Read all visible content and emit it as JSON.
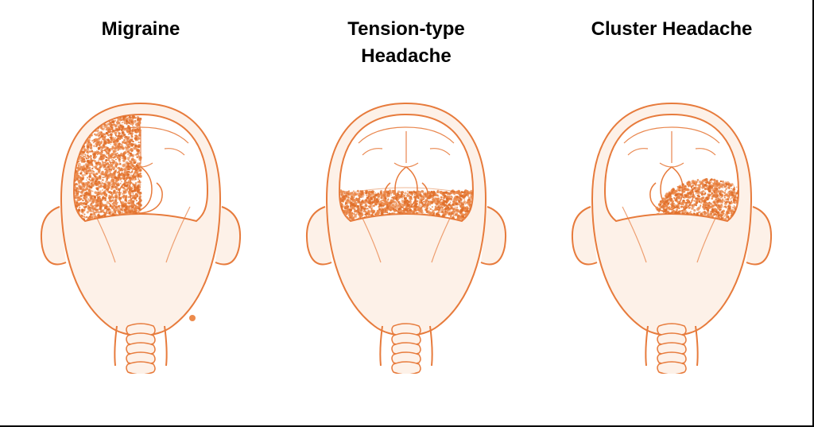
{
  "type": "infographic",
  "background_color": "#ffffff",
  "border_color": "#000000",
  "title_fontsize": 24,
  "title_fontweight": 700,
  "title_color": "#000000",
  "stroke_color": "#e77b3c",
  "fill_light": "#fdf1e8",
  "pain_color": "#ec8a4b",
  "pain_color_dense": "#e06f2a",
  "stroke_width": 2,
  "panels": [
    {
      "id": "migraine",
      "title": "Migraine",
      "pain_region": "left-half",
      "pain_description": "unilateral, left half of head filled with dense stipple"
    },
    {
      "id": "tension",
      "title": "Tension-type\nHeadache",
      "pain_region": "band",
      "pain_description": "horizontal band across forehead/temples"
    },
    {
      "id": "cluster",
      "title": "Cluster Headache",
      "pain_region": "right-orbital",
      "pain_description": "patch around right eye/temple"
    }
  ]
}
